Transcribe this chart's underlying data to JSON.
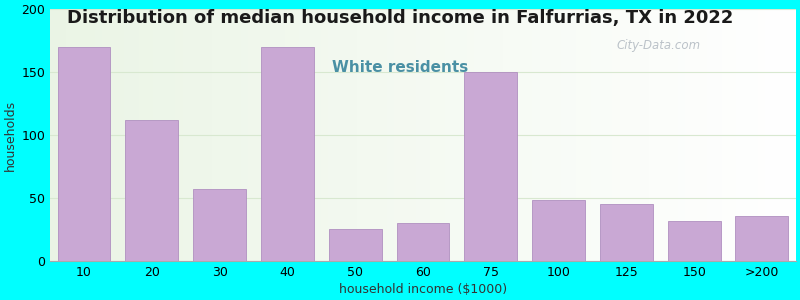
{
  "title": "Distribution of median household income in Falfurrias, TX in 2022",
  "subtitle": "White residents",
  "xlabel": "household income ($1000)",
  "ylabel": "households",
  "background_color": "#00FFFF",
  "bar_color": "#c9a8d4",
  "bar_edge_color": "#b090c0",
  "categories": [
    "10",
    "20",
    "30",
    "40",
    "50",
    "60",
    "75",
    "100",
    "125",
    "150",
    ">200"
  ],
  "values": [
    170,
    112,
    57,
    170,
    25,
    30,
    150,
    48,
    45,
    32,
    36
  ],
  "ylim": [
    0,
    200
  ],
  "yticks": [
    0,
    50,
    100,
    150,
    200
  ],
  "title_fontsize": 13,
  "subtitle_fontsize": 11,
  "subtitle_color": "#4a90a4",
  "axis_label_fontsize": 9,
  "tick_fontsize": 9,
  "watermark_text": "City-Data.com",
  "watermark_color": "#b0b8c0",
  "grid_color": "#d8e8d0"
}
